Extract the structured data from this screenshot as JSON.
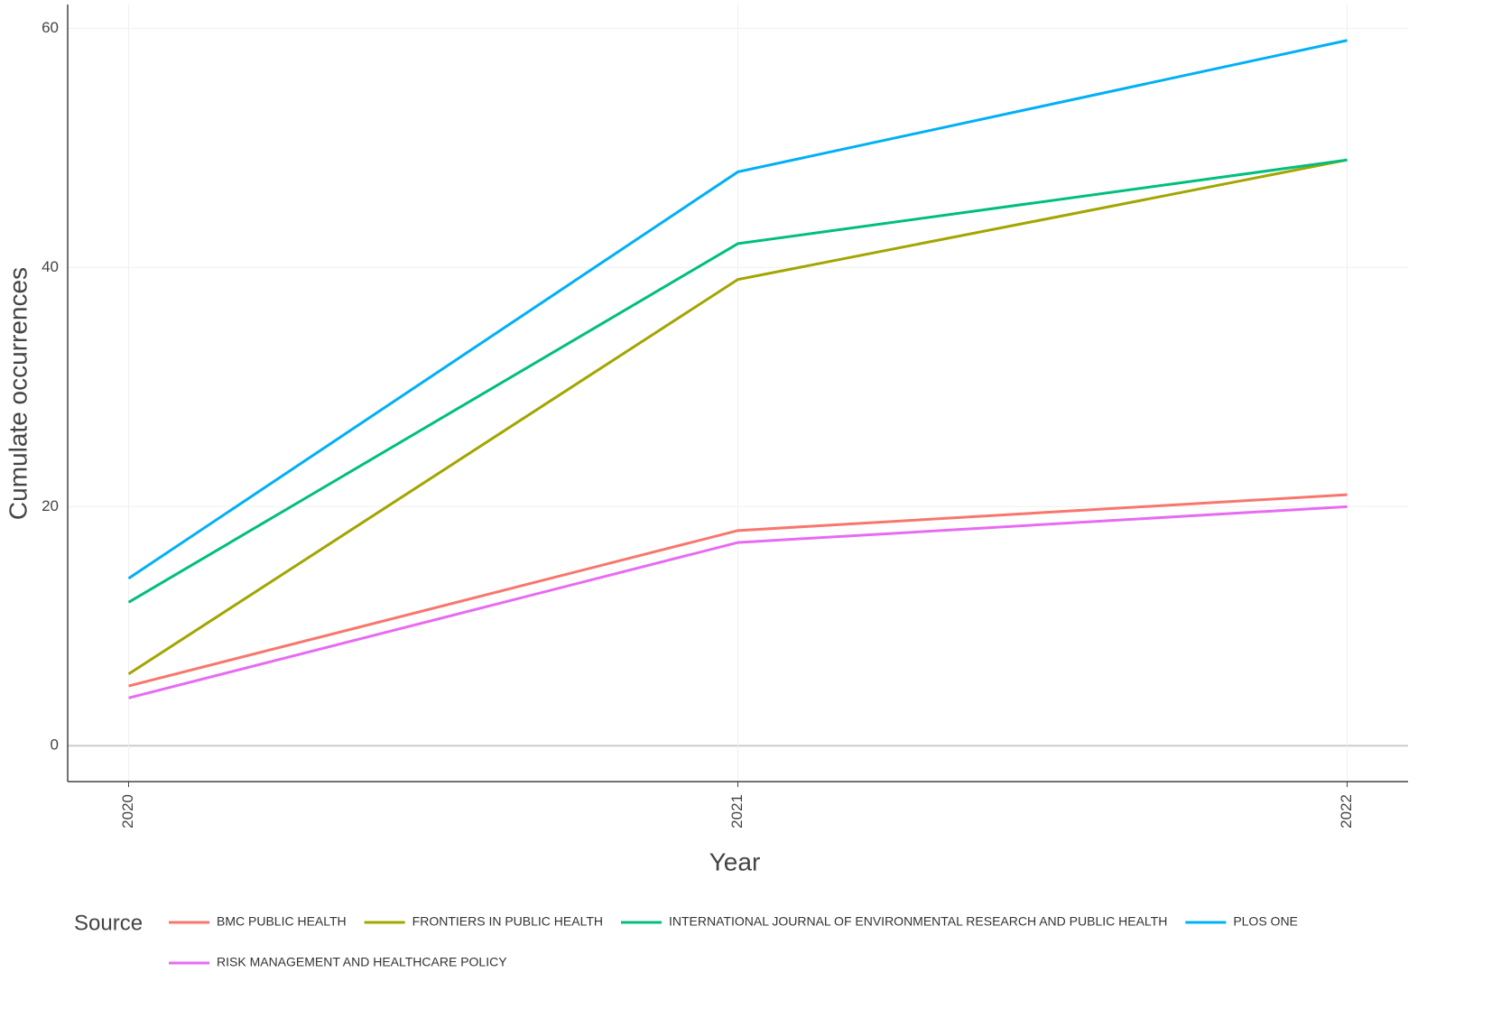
{
  "chart_data": {
    "type": "line",
    "x_label": "Year",
    "y_label": "Cumulate occurrences",
    "x": [
      2020,
      2021,
      2022
    ],
    "series": [
      {
        "name": "BMC PUBLIC HEALTH",
        "color": "#F8766D",
        "values": [
          5,
          18,
          21
        ]
      },
      {
        "name": "FRONTIERS IN PUBLIC HEALTH",
        "color": "#A3A500",
        "values": [
          6,
          39,
          49
        ]
      },
      {
        "name": "INTERNATIONAL JOURNAL OF ENVIRONMENTAL RESEARCH AND PUBLIC HEALTH",
        "color": "#00BF7D",
        "values": [
          12,
          42,
          49
        ]
      },
      {
        "name": "PLOS ONE",
        "color": "#00B0F6",
        "values": [
          14,
          48,
          59
        ]
      },
      {
        "name": "RISK MANAGEMENT AND HEALTHCARE POLICY",
        "color": "#E76BF3",
        "values": [
          4,
          17,
          20
        ]
      }
    ],
    "xlim": [
      2019.9,
      2022.1
    ],
    "xticks": [
      2020,
      2021,
      2022
    ],
    "ylim": [
      -3,
      62
    ],
    "yticks": [
      0,
      20,
      40,
      60
    ],
    "grid": true,
    "legend": "bottom",
    "legend_title": "Source"
  }
}
